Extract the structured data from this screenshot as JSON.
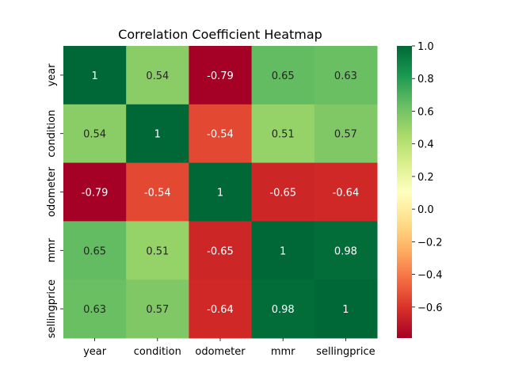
{
  "chart_data": {
    "type": "heatmap",
    "title": "Correlation Coefficient Heatmap",
    "row_labels": [
      "year",
      "condition",
      "odometer",
      "mmr",
      "sellingprice"
    ],
    "col_labels": [
      "year",
      "condition",
      "odometer",
      "mmr",
      "sellingprice"
    ],
    "values": [
      [
        1,
        0.54,
        -0.79,
        0.65,
        0.63
      ],
      [
        0.54,
        1,
        -0.54,
        0.51,
        0.57
      ],
      [
        -0.79,
        -0.54,
        1,
        -0.65,
        -0.64
      ],
      [
        0.65,
        0.51,
        -0.65,
        1,
        0.98
      ],
      [
        0.63,
        0.57,
        -0.64,
        0.98,
        1
      ]
    ],
    "cell_text": [
      [
        "1",
        "0.54",
        "-0.79",
        "0.65",
        "0.63"
      ],
      [
        "0.54",
        "1",
        "-0.54",
        "0.51",
        "0.57"
      ],
      [
        "-0.79",
        "-0.54",
        "1",
        "-0.65",
        "-0.64"
      ],
      [
        "0.65",
        "0.51",
        "-0.65",
        "1",
        "0.98"
      ],
      [
        "0.63",
        "0.57",
        "-0.64",
        "0.98",
        "1"
      ]
    ],
    "colormap": "RdYlGn",
    "vmin": -0.79,
    "vmax": 1.0,
    "colorbar_ticks": [
      1.0,
      0.8,
      0.6,
      0.4,
      0.2,
      0.0,
      -0.2,
      -0.4,
      -0.6
    ],
    "colorbar_tick_labels": [
      "1.0",
      "0.8",
      "0.6",
      "0.4",
      "0.2",
      "0.0",
      "−0.2",
      "−0.4",
      "−0.6"
    ]
  }
}
